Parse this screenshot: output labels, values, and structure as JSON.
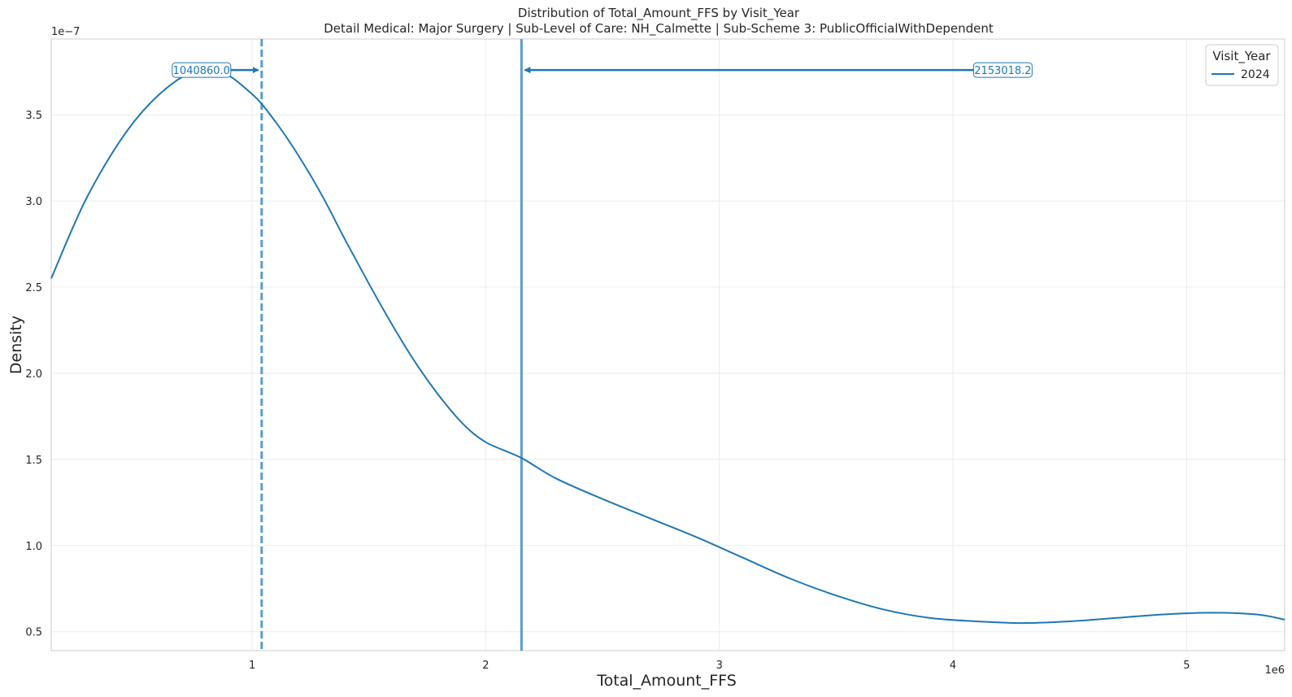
{
  "chart_data": {
    "type": "line",
    "title": "Distribution of Total_Amount_FFS by Visit_Year",
    "subtitle": "Detail Medical: Major Surgery | Sub-Level of Care: NH_Calmette | Sub-Scheme 3: PublicOfficialWithDependent",
    "xlabel": "Total_Amount_FFS",
    "ylabel": "Density",
    "x_scale_label": "1e6",
    "y_scale_label": "1e−7",
    "xlim": [
      0.14,
      5.42
    ],
    "ylim": [
      0.39,
      3.94
    ],
    "x_ticks": [
      1,
      2,
      3,
      4,
      5
    ],
    "x_tick_labels": [
      "1",
      "2",
      "3",
      "4",
      "5"
    ],
    "y_ticks": [
      0.5,
      1.0,
      1.5,
      2.0,
      2.5,
      3.0,
      3.5
    ],
    "y_tick_labels": [
      "0.5",
      "1.0",
      "1.5",
      "2.0",
      "2.5",
      "3.0",
      "3.5"
    ],
    "grid": true,
    "legend": {
      "title": "Visit_Year",
      "position": "top-right"
    },
    "series": [
      {
        "name": "2024",
        "color": "#1f77b4",
        "x": [
          0.14,
          0.3,
          0.5,
          0.7,
          0.85,
          1.0,
          1.1,
          1.2,
          1.3,
          1.4,
          1.5,
          1.6,
          1.7,
          1.8,
          1.9,
          2.0,
          2.15,
          2.3,
          2.5,
          2.7,
          2.9,
          3.1,
          3.3,
          3.5,
          3.7,
          3.9,
          4.1,
          4.3,
          4.5,
          4.7,
          4.9,
          5.1,
          5.3,
          5.42
        ],
        "y": [
          2.55,
          3.04,
          3.47,
          3.72,
          3.76,
          3.62,
          3.46,
          3.26,
          3.03,
          2.77,
          2.52,
          2.28,
          2.06,
          1.87,
          1.71,
          1.6,
          1.51,
          1.39,
          1.27,
          1.16,
          1.05,
          0.93,
          0.81,
          0.71,
          0.63,
          0.58,
          0.56,
          0.55,
          0.56,
          0.58,
          0.6,
          0.61,
          0.6,
          0.57
        ]
      }
    ],
    "vlines": [
      {
        "x": 1.04086,
        "style": "dashed",
        "color": "#5b9bd5"
      },
      {
        "x": 2.1530182,
        "style": "solid",
        "color": "#5b9bd5"
      }
    ],
    "annotations": [
      {
        "text": "1040860.0",
        "arrow_to_x": 1.04086,
        "y": 3.76
      },
      {
        "text": "2153018.2",
        "arrow_to_x": 2.1530182,
        "y": 3.76
      }
    ]
  }
}
